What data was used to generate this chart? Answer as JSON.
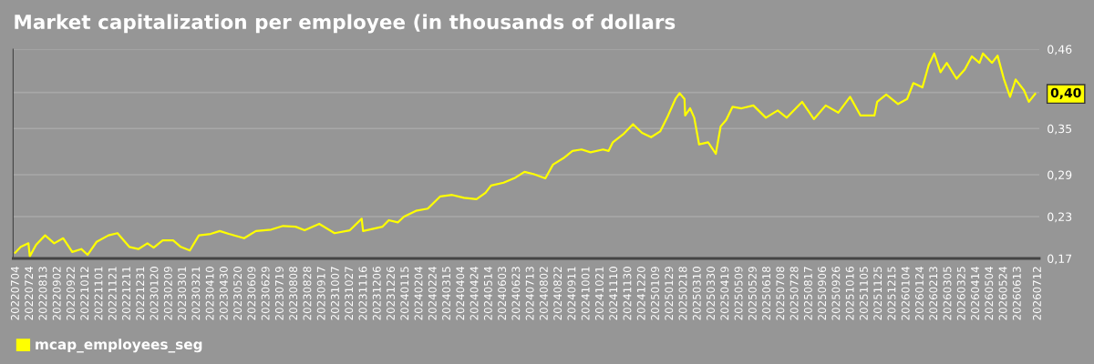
{
  "chart_data": {
    "type": "line",
    "title": "Market capitalization per employee (in thousands of dollars",
    "x": [
      "2022-07-03",
      "2022-07-11",
      "2022-07-22",
      "2022-07-24",
      "2022-08-02",
      "2022-08-15",
      "2022-08-28",
      "2022-09-10",
      "2022-09-23",
      "2022-10-06",
      "2022-10-15",
      "2022-10-28",
      "2022-11-14",
      "2022-11-27",
      "2022-12-14",
      "2022-12-27",
      "2023-01-09",
      "2023-01-18",
      "2023-01-31",
      "2023-02-15",
      "2023-02-26",
      "2023-03-11",
      "2023-03-24",
      "2023-04-10",
      "2023-04-23",
      "2023-05-06",
      "2023-05-28",
      "2023-06-14",
      "2023-07-06",
      "2023-07-23",
      "2023-08-10",
      "2023-08-23",
      "2023-09-13",
      "2023-10-05",
      "2023-10-27",
      "2023-11-13",
      "2023-11-15",
      "2023-12-13",
      "2023-12-22",
      "2024-01-04",
      "2024-01-13",
      "2024-01-30",
      "2024-02-16",
      "2024-03-05",
      "2024-03-22",
      "2024-04-08",
      "2024-04-26",
      "2024-05-09",
      "2024-05-17",
      "2024-06-04",
      "2024-06-21",
      "2024-07-04",
      "2024-07-17",
      "2024-08-03",
      "2024-08-14",
      "2024-08-29",
      "2024-09-11",
      "2024-09-24",
      "2024-10-07",
      "2024-10-25",
      "2024-11-02",
      "2024-11-08",
      "2024-11-24",
      "2024-12-07",
      "2024-12-20",
      "2025-01-02",
      "2025-01-15",
      "2025-01-25",
      "2025-02-06",
      "2025-02-12",
      "2025-02-19",
      "2025-02-20",
      "2025-02-27",
      "2025-03-05",
      "2025-03-12",
      "2025-03-25",
      "2025-04-05",
      "2025-04-12",
      "2025-04-20",
      "2025-04-29",
      "2025-05-12",
      "2025-05-29",
      "2025-06-16",
      "2025-07-03",
      "2025-07-16",
      "2025-08-07",
      "2025-08-24",
      "2025-09-10",
      "2025-09-28",
      "2025-10-15",
      "2025-10-30",
      "2025-11-19",
      "2025-11-23",
      "2025-12-06",
      "2025-12-23",
      "2026-01-05",
      "2026-01-14",
      "2026-01-27",
      "2026-02-05",
      "2026-02-13",
      "2026-02-22",
      "2026-03-03",
      "2026-03-17",
      "2026-03-29",
      "2026-04-08",
      "2026-04-19",
      "2026-04-24",
      "2026-05-07",
      "2026-05-15",
      "2026-05-24",
      "2026-06-02",
      "2026-06-10",
      "2026-06-22",
      "2026-06-29",
      "2026-07-08"
    ],
    "series": [
      {
        "name": "mcap_employees_seg",
        "color": "#ffff00",
        "values": [
          0.178,
          0.186,
          0.191,
          0.173,
          0.189,
          0.202,
          0.191,
          0.198,
          0.179,
          0.183,
          0.175,
          0.193,
          0.202,
          0.205,
          0.186,
          0.183,
          0.191,
          0.185,
          0.195,
          0.195,
          0.186,
          0.181,
          0.202,
          0.204,
          0.208,
          0.204,
          0.198,
          0.208,
          0.21,
          0.215,
          0.214,
          0.209,
          0.218,
          0.205,
          0.209,
          0.225,
          0.208,
          0.214,
          0.223,
          0.22,
          0.228,
          0.236,
          0.239,
          0.256,
          0.258,
          0.254,
          0.252,
          0.261,
          0.271,
          0.275,
          0.282,
          0.29,
          0.287,
          0.281,
          0.3,
          0.309,
          0.319,
          0.321,
          0.317,
          0.321,
          0.319,
          0.331,
          0.343,
          0.356,
          0.344,
          0.338,
          0.346,
          0.365,
          0.391,
          0.399,
          0.391,
          0.368,
          0.378,
          0.365,
          0.328,
          0.331,
          0.315,
          0.353,
          0.362,
          0.38,
          0.378,
          0.382,
          0.365,
          0.375,
          0.365,
          0.387,
          0.363,
          0.382,
          0.372,
          0.394,
          0.368,
          0.368,
          0.387,
          0.397,
          0.384,
          0.391,
          0.413,
          0.407,
          0.438,
          0.454,
          0.428,
          0.441,
          0.419,
          0.432,
          0.45,
          0.441,
          0.454,
          0.441,
          0.451,
          0.419,
          0.394,
          0.418,
          0.403,
          0.387,
          0.398
        ]
      }
    ],
    "xlim": [
      "2022-06-30",
      "2026-07-14"
    ],
    "xticks": [
      {
        "value": "2022-07-04",
        "label": "20220704"
      },
      {
        "value": "2022-07-24",
        "label": "20220724"
      },
      {
        "value": "2022-08-13",
        "label": "20220813"
      },
      {
        "value": "2022-09-02",
        "label": "20220902"
      },
      {
        "value": "2022-09-22",
        "label": "20220922"
      },
      {
        "value": "2022-10-12",
        "label": "20221012"
      },
      {
        "value": "2022-11-01",
        "label": "20221101"
      },
      {
        "value": "2022-11-21",
        "label": "20221121"
      },
      {
        "value": "2022-12-11",
        "label": "20221211"
      },
      {
        "value": "2022-12-31",
        "label": "20221231"
      },
      {
        "value": "2023-01-20",
        "label": "20230120"
      },
      {
        "value": "2023-02-09",
        "label": "20230209"
      },
      {
        "value": "2023-03-01",
        "label": "20230301"
      },
      {
        "value": "2023-03-21",
        "label": "20230321"
      },
      {
        "value": "2023-04-10",
        "label": "20230410"
      },
      {
        "value": "2023-04-30",
        "label": "20230430"
      },
      {
        "value": "2023-05-20",
        "label": "20230520"
      },
      {
        "value": "2023-06-09",
        "label": "20230609"
      },
      {
        "value": "2023-06-29",
        "label": "20230629"
      },
      {
        "value": "2023-07-19",
        "label": "20230719"
      },
      {
        "value": "2023-08-08",
        "label": "20230808"
      },
      {
        "value": "2023-08-28",
        "label": "20230828"
      },
      {
        "value": "2023-09-17",
        "label": "20230917"
      },
      {
        "value": "2023-10-07",
        "label": "20231007"
      },
      {
        "value": "2023-10-27",
        "label": "20231027"
      },
      {
        "value": "2023-11-16",
        "label": "20231116"
      },
      {
        "value": "2023-12-06",
        "label": "20231206"
      },
      {
        "value": "2023-12-26",
        "label": "20231226"
      },
      {
        "value": "2024-01-15",
        "label": "20240115"
      },
      {
        "value": "2024-02-04",
        "label": "20240204"
      },
      {
        "value": "2024-02-24",
        "label": "20240224"
      },
      {
        "value": "2024-03-15",
        "label": "20240315"
      },
      {
        "value": "2024-04-04",
        "label": "20240404"
      },
      {
        "value": "2024-04-24",
        "label": "20240424"
      },
      {
        "value": "2024-05-14",
        "label": "20240514"
      },
      {
        "value": "2024-06-03",
        "label": "20240603"
      },
      {
        "value": "2024-06-23",
        "label": "20240623"
      },
      {
        "value": "2024-07-13",
        "label": "20240713"
      },
      {
        "value": "2024-08-02",
        "label": "20240802"
      },
      {
        "value": "2024-08-22",
        "label": "20240822"
      },
      {
        "value": "2024-09-11",
        "label": "20240911"
      },
      {
        "value": "2024-10-01",
        "label": "20241001"
      },
      {
        "value": "2024-10-21",
        "label": "20241021"
      },
      {
        "value": "2024-11-10",
        "label": "20241110"
      },
      {
        "value": "2024-11-30",
        "label": "20241130"
      },
      {
        "value": "2024-12-20",
        "label": "20241220"
      },
      {
        "value": "2025-01-09",
        "label": "20250109"
      },
      {
        "value": "2025-01-29",
        "label": "20250129"
      },
      {
        "value": "2025-02-18",
        "label": "20250218"
      },
      {
        "value": "2025-03-10",
        "label": "20250310"
      },
      {
        "value": "2025-03-30",
        "label": "20250330"
      },
      {
        "value": "2025-04-19",
        "label": "20250419"
      },
      {
        "value": "2025-05-09",
        "label": "20250509"
      },
      {
        "value": "2025-05-29",
        "label": "20250529"
      },
      {
        "value": "2025-06-18",
        "label": "20250618"
      },
      {
        "value": "2025-07-08",
        "label": "20250708"
      },
      {
        "value": "2025-07-28",
        "label": "20250728"
      },
      {
        "value": "2025-08-17",
        "label": "20250817"
      },
      {
        "value": "2025-09-06",
        "label": "20250906"
      },
      {
        "value": "2025-09-26",
        "label": "20250926"
      },
      {
        "value": "2025-10-16",
        "label": "20251016"
      },
      {
        "value": "2025-11-05",
        "label": "20251105"
      },
      {
        "value": "2025-11-25",
        "label": "20251125"
      },
      {
        "value": "2025-12-15",
        "label": "20251215"
      },
      {
        "value": "2026-01-04",
        "label": "20260104"
      },
      {
        "value": "2026-01-24",
        "label": "20260124"
      },
      {
        "value": "2026-02-13",
        "label": "20260213"
      },
      {
        "value": "2026-03-05",
        "label": "20260305"
      },
      {
        "value": "2026-03-25",
        "label": "20260325"
      },
      {
        "value": "2026-04-14",
        "label": "20260414"
      },
      {
        "value": "2026-05-04",
        "label": "20260504"
      },
      {
        "value": "2026-05-24",
        "label": "20260524"
      },
      {
        "value": "2026-06-13",
        "label": "20260613"
      },
      {
        "value": "2026-07-12",
        "label": "20260712"
      }
    ],
    "ylim": [
      0.17,
      0.46
    ],
    "yticks": [
      {
        "value": 0.17,
        "label": "0,17"
      },
      {
        "value": 0.228,
        "label": "0,23"
      },
      {
        "value": 0.286,
        "label": "0,29"
      },
      {
        "value": 0.35,
        "label": "0,35"
      },
      {
        "value": 0.4,
        "label": null
      },
      {
        "value": 0.46,
        "label": "0,46"
      }
    ],
    "annotations": [
      {
        "text": "0,40",
        "x": "2026-07-08",
        "y": 0.398
      }
    ],
    "grid": "y",
    "legend": "bottom left"
  }
}
